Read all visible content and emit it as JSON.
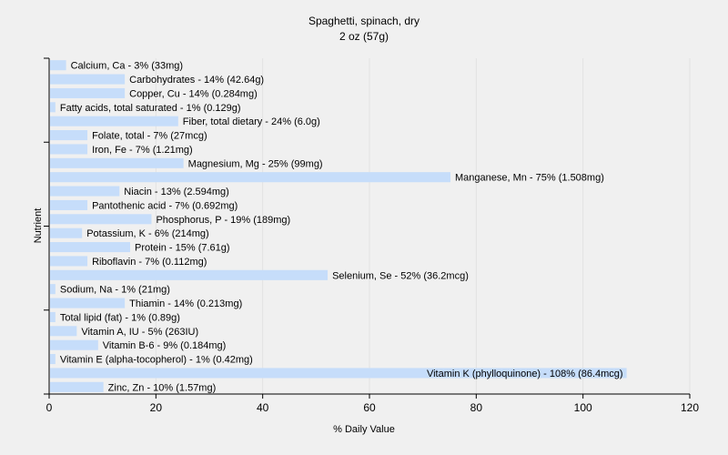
{
  "chart_data": {
    "type": "bar",
    "orientation": "horizontal",
    "title": "Spaghetti, spinach, dry",
    "subtitle": "2 oz (57g)",
    "xlabel": "% Daily Value",
    "ylabel": "Nutrient",
    "xlim": [
      0,
      120
    ],
    "xticks": [
      0,
      20,
      40,
      60,
      80,
      100,
      120
    ],
    "grid": true,
    "bar_color": "#c6ddfa",
    "grid_color": "#e2e2e2",
    "categories": [
      "Calcium, Ca",
      "Carbohydrates",
      "Copper, Cu",
      "Fatty acids, total saturated",
      "Fiber, total dietary",
      "Folate, total",
      "Iron, Fe",
      "Magnesium, Mg",
      "Manganese, Mn",
      "Niacin",
      "Pantothenic acid",
      "Phosphorus, P",
      "Potassium, K",
      "Protein",
      "Riboflavin",
      "Selenium, Se",
      "Sodium, Na",
      "Thiamin",
      "Total lipid (fat)",
      "Vitamin A, IU",
      "Vitamin B-6",
      "Vitamin E (alpha-tocopherol)",
      "Vitamin K (phylloquinone)",
      "Zinc, Zn"
    ],
    "values": [
      3,
      14,
      14,
      1,
      24,
      7,
      7,
      25,
      75,
      13,
      7,
      19,
      6,
      15,
      7,
      52,
      1,
      14,
      1,
      5,
      9,
      1,
      108,
      10
    ],
    "labels": [
      "Calcium, Ca - 3% (33mg)",
      "Carbohydrates - 14% (42.64g)",
      "Copper, Cu - 14% (0.284mg)",
      "Fatty acids, total saturated - 1% (0.129g)",
      "Fiber, total dietary - 24% (6.0g)",
      "Folate, total - 7% (27mcg)",
      "Iron, Fe - 7% (1.21mg)",
      "Magnesium, Mg - 25% (99mg)",
      "Manganese, Mn - 75% (1.508mg)",
      "Niacin - 13% (2.594mg)",
      "Pantothenic acid - 7% (0.692mg)",
      "Phosphorus, P - 19% (189mg)",
      "Potassium, K - 6% (214mg)",
      "Protein - 15% (7.61g)",
      "Riboflavin - 7% (0.112mg)",
      "Selenium, Se - 52% (36.2mcg)",
      "Sodium, Na - 1% (21mg)",
      "Thiamin - 14% (0.213mg)",
      "Total lipid (fat) - 1% (0.89g)",
      "Vitamin A, IU - 5% (263IU)",
      "Vitamin B-6 - 9% (0.184mg)",
      "Vitamin E (alpha-tocopherol) - 1% (0.42mg)",
      "Vitamin K (phylloquinone) - 108% (86.4mcg)",
      "Zinc, Zn - 10% (1.57mg)"
    ]
  }
}
